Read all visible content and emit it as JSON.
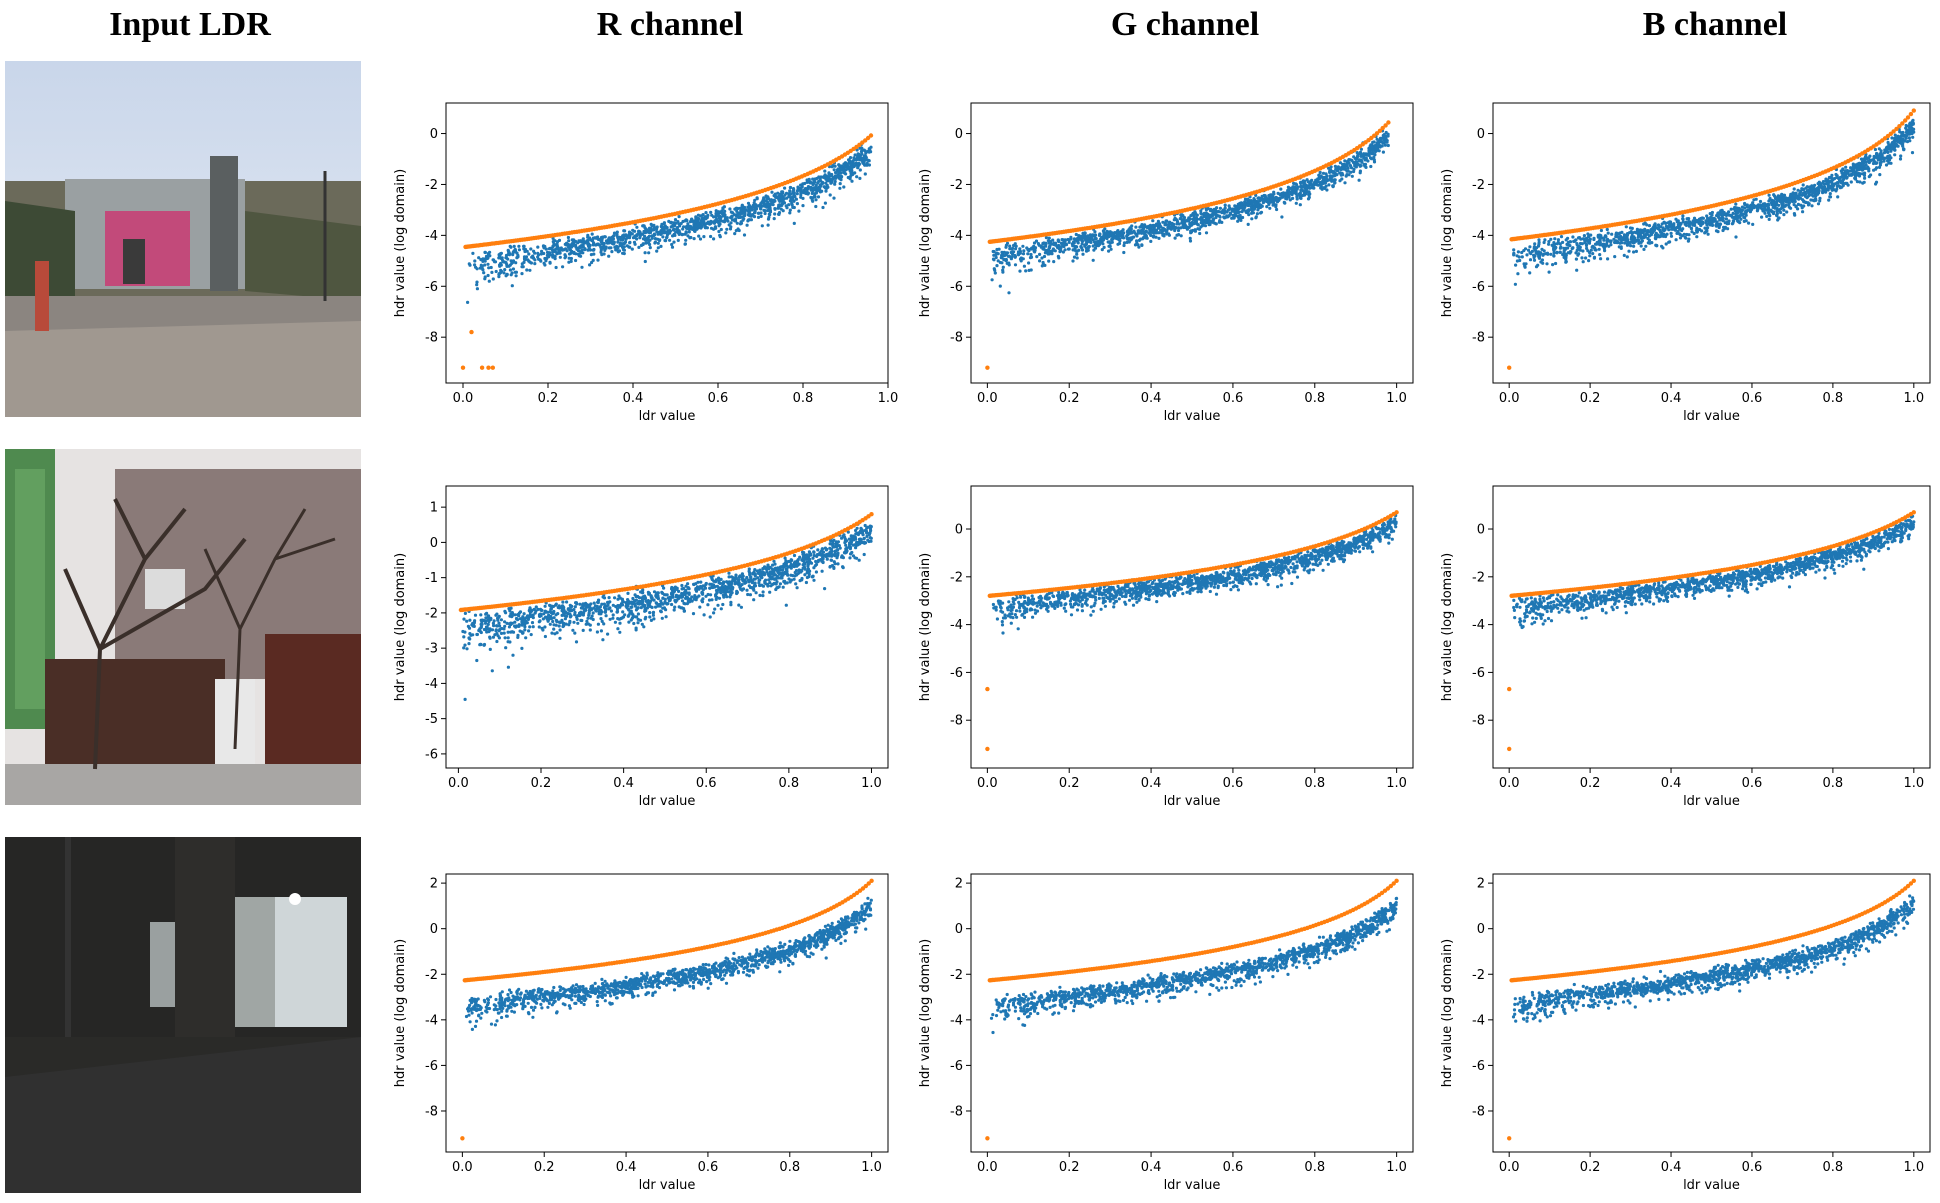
{
  "headers": {
    "input": "Input LDR",
    "r": "R channel",
    "g": "G channel",
    "b": "B channel"
  },
  "colors": {
    "hdr_points": "#1f77b4",
    "fitted_curve": "#ff7f0e"
  },
  "photos": [
    {
      "name": "outdoor-pink-building",
      "scene": "daylight street with pink guard booth"
    },
    {
      "name": "brick-wall-trees",
      "scene": "bare trees in front of brick house and wooden fence"
    },
    {
      "name": "night-building-entrance",
      "scene": "dark plaza with lit glass entrance"
    }
  ],
  "chart_data": [
    {
      "row": 0,
      "channel": "R",
      "type": "scatter",
      "xlabel": "ldr value",
      "ylabel": "hdr value (log domain)",
      "xlim": [
        -0.04,
        1.0
      ],
      "ylim": [
        -9.8,
        1.2
      ],
      "xticks": [
        "0.0",
        "0.2",
        "0.4",
        "0.6",
        "0.8",
        "1.0"
      ],
      "yticks": [
        "0",
        "-2",
        "-4",
        "-6",
        "-8"
      ],
      "curve": {
        "a": 2.2,
        "b": 0.6,
        "c": 9,
        "xmax": 0.96
      },
      "scatter": {
        "offset": -0.35,
        "spread": 0.45,
        "xmax": 0.96
      },
      "outliers": [
        [
          0.0,
          -9.2
        ],
        [
          0.045,
          -9.2
        ],
        [
          0.06,
          -9.2
        ],
        [
          0.07,
          -9.2
        ],
        [
          0.02,
          -7.8
        ]
      ]
    },
    {
      "row": 0,
      "channel": "G",
      "type": "scatter",
      "xlabel": "ldr value",
      "ylabel": "hdr value (log domain)",
      "xlim": [
        -0.04,
        1.04
      ],
      "ylim": [
        -9.8,
        1.2
      ],
      "xticks": [
        "0.0",
        "0.2",
        "0.4",
        "0.6",
        "0.8",
        "1.0"
      ],
      "yticks": [
        "0",
        "-2",
        "-4",
        "-6",
        "-8"
      ],
      "curve": {
        "a": 2.2,
        "b": 0.8,
        "c": 9,
        "xmax": 0.98
      },
      "scatter": {
        "offset": -0.3,
        "spread": 0.35,
        "xmax": 0.98
      },
      "outliers": [
        [
          0.0,
          -9.2
        ]
      ]
    },
    {
      "row": 0,
      "channel": "B",
      "type": "scatter",
      "xlabel": "ldr value",
      "ylabel": "hdr value (log domain)",
      "xlim": [
        -0.04,
        1.04
      ],
      "ylim": [
        -9.8,
        1.2
      ],
      "xticks": [
        "0.0",
        "0.2",
        "0.4",
        "0.6",
        "0.8",
        "1.0"
      ],
      "yticks": [
        "0",
        "-2",
        "-4",
        "-6",
        "-8"
      ],
      "curve": {
        "a": 2.2,
        "b": 0.9,
        "c": 9,
        "xmax": 1.0
      },
      "scatter": {
        "offset": -0.35,
        "spread": 0.4,
        "xmax": 1.0
      },
      "outliers": [
        [
          0.0,
          -9.2
        ]
      ]
    },
    {
      "row": 1,
      "channel": "R",
      "type": "scatter",
      "xlabel": "ldr value",
      "ylabel": "hdr value (log domain)",
      "xlim": [
        -0.03,
        1.04
      ],
      "ylim": [
        -6.4,
        1.6
      ],
      "xticks": [
        "0.0",
        "0.2",
        "0.4",
        "0.6",
        "0.8",
        "1.0"
      ],
      "yticks": [
        "1",
        "0",
        "-1",
        "-2",
        "-3",
        "-4",
        "-5",
        "-6"
      ],
      "curve": {
        "a": 1.4,
        "b": 0.8,
        "c": 6,
        "xmax": 1.0
      },
      "scatter": {
        "offset": -0.25,
        "spread": 0.4,
        "xmax": 1.0
      },
      "outliers": []
    },
    {
      "row": 1,
      "channel": "G",
      "type": "scatter",
      "xlabel": "ldr value",
      "ylabel": "hdr value (log domain)",
      "xlim": [
        -0.04,
        1.04
      ],
      "ylim": [
        -10.0,
        1.8
      ],
      "xticks": [
        "0.0",
        "0.2",
        "0.4",
        "0.6",
        "0.8",
        "1.0"
      ],
      "yticks": [
        "0",
        "-2",
        "-4",
        "-6",
        "-8"
      ],
      "curve": {
        "a": 1.8,
        "b": 0.7,
        "c": 6,
        "xmax": 1.0
      },
      "scatter": {
        "offset": -0.25,
        "spread": 0.35,
        "xmax": 1.0
      },
      "outliers": [
        [
          0.0,
          -9.2
        ],
        [
          0.0,
          -6.7
        ]
      ]
    },
    {
      "row": 1,
      "channel": "B",
      "type": "scatter",
      "xlabel": "ldr value",
      "ylabel": "hdr value (log domain)",
      "xlim": [
        -0.04,
        1.04
      ],
      "ylim": [
        -10.0,
        1.8
      ],
      "xticks": [
        "0.0",
        "0.2",
        "0.4",
        "0.6",
        "0.8",
        "1.0"
      ],
      "yticks": [
        "0",
        "-2",
        "-4",
        "-6",
        "-8"
      ],
      "curve": {
        "a": 1.8,
        "b": 0.7,
        "c": 6,
        "xmax": 1.0
      },
      "scatter": {
        "offset": -0.25,
        "spread": 0.35,
        "xmax": 1.0
      },
      "outliers": [
        [
          0.0,
          -9.2
        ],
        [
          0.0,
          -6.7
        ]
      ]
    },
    {
      "row": 2,
      "channel": "R",
      "type": "scatter",
      "xlabel": "ldr value",
      "ylabel": "hdr value (log domain)",
      "xlim": [
        -0.04,
        1.04
      ],
      "ylim": [
        -9.8,
        2.4
      ],
      "xticks": [
        "0.0",
        "0.2",
        "0.4",
        "0.6",
        "0.8",
        "1.0"
      ],
      "yticks": [
        "2",
        "0",
        "-2",
        "-4",
        "-6",
        "-8"
      ],
      "curve": {
        "a": 1.9,
        "b": 2.1,
        "c": 9,
        "xmax": 1.0
      },
      "scatter": {
        "offset": -0.85,
        "spread": 0.4,
        "xmax": 1.0
      },
      "outliers": [
        [
          0.0,
          -9.2
        ]
      ]
    },
    {
      "row": 2,
      "channel": "G",
      "type": "scatter",
      "xlabel": "ldr value",
      "ylabel": "hdr value (log domain)",
      "xlim": [
        -0.04,
        1.04
      ],
      "ylim": [
        -9.8,
        2.4
      ],
      "xticks": [
        "0.0",
        "0.2",
        "0.4",
        "0.6",
        "0.8",
        "1.0"
      ],
      "yticks": [
        "2",
        "0",
        "-2",
        "-4",
        "-6",
        "-8"
      ],
      "curve": {
        "a": 1.9,
        "b": 2.1,
        "c": 9,
        "xmax": 1.0
      },
      "scatter": {
        "offset": -0.85,
        "spread": 0.4,
        "xmax": 1.0
      },
      "outliers": [
        [
          0.0,
          -9.2
        ]
      ]
    },
    {
      "row": 2,
      "channel": "B",
      "type": "scatter",
      "xlabel": "ldr value",
      "ylabel": "hdr value (log domain)",
      "xlim": [
        -0.04,
        1.04
      ],
      "ylim": [
        -9.8,
        2.4
      ],
      "xticks": [
        "0.0",
        "0.2",
        "0.4",
        "0.6",
        "0.8",
        "1.0"
      ],
      "yticks": [
        "2",
        "0",
        "-2",
        "-4",
        "-6",
        "-8"
      ],
      "curve": {
        "a": 1.9,
        "b": 2.1,
        "c": 9,
        "xmax": 1.0
      },
      "scatter": {
        "offset": -0.75,
        "spread": 0.4,
        "xmax": 1.0
      },
      "outliers": [
        [
          0.0,
          -9.2
        ]
      ]
    }
  ]
}
